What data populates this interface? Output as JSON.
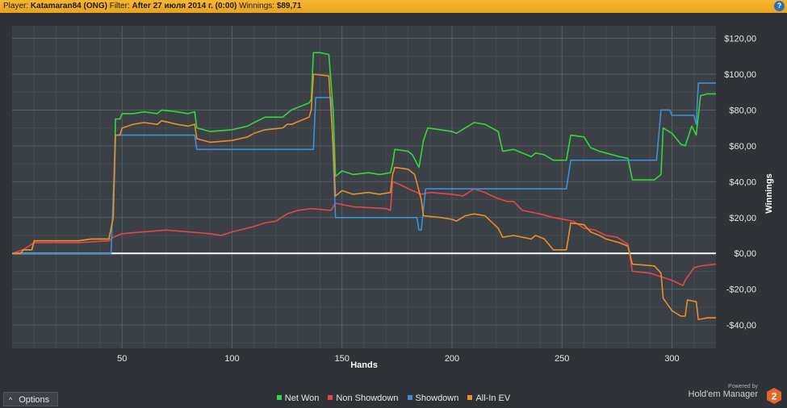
{
  "header": {
    "player_label": "Player:",
    "player_value": "Katamaran84 (ONG)",
    "filter_label": "Filter:",
    "filter_value": "After 27 июля 2014 г. (0:00)",
    "winnings_label": "Winnings:",
    "winnings_value": "$89,71",
    "help_label": "?"
  },
  "colors": {
    "net_won": "#35d63a",
    "non_showdown": "#e0474a",
    "showdown": "#3d8fd6",
    "all_in_ev": "#e98e2c",
    "zero_line": "#ffffff",
    "header_bg": "#f3ae2b"
  },
  "options": {
    "label": "Options",
    "chevron": "^"
  },
  "branding": {
    "powered_by": "Powered by",
    "name": "Hold'em Manager",
    "logo_text": "2"
  },
  "chart_data": {
    "type": "line",
    "xlabel": "Hands",
    "ylabel": "Winnings",
    "xlim": [
      0,
      320
    ],
    "ylim": [
      -53,
      127
    ],
    "x_ticks": [
      50,
      100,
      150,
      200,
      250,
      300
    ],
    "y_ticks": [
      120,
      100,
      80,
      60,
      40,
      20,
      0,
      -20,
      -40
    ],
    "y_tick_labels": [
      "$120,00",
      "$100,00",
      "$80,00",
      "$60,00",
      "$40,00",
      "$20,00",
      "$0,00",
      "-$20,00",
      "-$40,00"
    ],
    "grid": true,
    "legend_position": "bottom",
    "series": [
      {
        "name": "Net Won",
        "color": "#35d63a",
        "points": [
          [
            0,
            0
          ],
          [
            4,
            0
          ],
          [
            5,
            2
          ],
          [
            9,
            2
          ],
          [
            10,
            7
          ],
          [
            30,
            7
          ],
          [
            36,
            8
          ],
          [
            44,
            8
          ],
          [
            46,
            20
          ],
          [
            47,
            75
          ],
          [
            49,
            75
          ],
          [
            50,
            78
          ],
          [
            55,
            78
          ],
          [
            60,
            79
          ],
          [
            66,
            78
          ],
          [
            68,
            80
          ],
          [
            75,
            79
          ],
          [
            80,
            78
          ],
          [
            83,
            79
          ],
          [
            84,
            70
          ],
          [
            90,
            68
          ],
          [
            100,
            69
          ],
          [
            107,
            71
          ],
          [
            110,
            73
          ],
          [
            115,
            76
          ],
          [
            123,
            76
          ],
          [
            125,
            78
          ],
          [
            127,
            80
          ],
          [
            135,
            84
          ],
          [
            136,
            86
          ],
          [
            137,
            112
          ],
          [
            140,
            112
          ],
          [
            144,
            111
          ],
          [
            146,
            80
          ],
          [
            147,
            43
          ],
          [
            150,
            46
          ],
          [
            155,
            44
          ],
          [
            162,
            45
          ],
          [
            167,
            44
          ],
          [
            172,
            45
          ],
          [
            173,
            50
          ],
          [
            174,
            58
          ],
          [
            180,
            57
          ],
          [
            182,
            55
          ],
          [
            185,
            48
          ],
          [
            187,
            63
          ],
          [
            189,
            70
          ],
          [
            200,
            68
          ],
          [
            202,
            67
          ],
          [
            206,
            70
          ],
          [
            210,
            73
          ],
          [
            215,
            72
          ],
          [
            221,
            68
          ],
          [
            223,
            57
          ],
          [
            228,
            58
          ],
          [
            232,
            56
          ],
          [
            236,
            54
          ],
          [
            238,
            56
          ],
          [
            242,
            55
          ],
          [
            246,
            52
          ],
          [
            252,
            52
          ],
          [
            254,
            66
          ],
          [
            260,
            65
          ],
          [
            263,
            59
          ],
          [
            267,
            57
          ],
          [
            270,
            56
          ],
          [
            276,
            54
          ],
          [
            280,
            53
          ],
          [
            282,
            41
          ],
          [
            292,
            41
          ],
          [
            295,
            44
          ],
          [
            296,
            70
          ],
          [
            300,
            67
          ],
          [
            304,
            61
          ],
          [
            306,
            60
          ],
          [
            309,
            71
          ],
          [
            311,
            66
          ],
          [
            313,
            88
          ],
          [
            316,
            89
          ],
          [
            320,
            89
          ]
        ]
      },
      {
        "name": "Non Showdown",
        "color": "#e0474a",
        "points": [
          [
            0,
            0
          ],
          [
            5,
            2
          ],
          [
            10,
            6
          ],
          [
            30,
            6
          ],
          [
            44,
            7
          ],
          [
            46,
            9
          ],
          [
            50,
            11
          ],
          [
            60,
            12
          ],
          [
            70,
            13
          ],
          [
            80,
            12
          ],
          [
            90,
            11
          ],
          [
            95,
            10
          ],
          [
            100,
            12
          ],
          [
            110,
            15
          ],
          [
            115,
            17
          ],
          [
            120,
            18
          ],
          [
            125,
            22
          ],
          [
            130,
            24
          ],
          [
            136,
            25
          ],
          [
            145,
            24
          ],
          [
            147,
            28
          ],
          [
            155,
            26
          ],
          [
            170,
            25
          ],
          [
            172,
            24
          ],
          [
            173,
            40
          ],
          [
            177,
            38
          ],
          [
            182,
            35
          ],
          [
            186,
            33
          ],
          [
            190,
            34
          ],
          [
            200,
            33
          ],
          [
            205,
            32
          ],
          [
            210,
            36
          ],
          [
            215,
            34
          ],
          [
            220,
            31
          ],
          [
            225,
            29
          ],
          [
            228,
            29
          ],
          [
            232,
            24
          ],
          [
            240,
            22
          ],
          [
            246,
            20
          ],
          [
            255,
            18
          ],
          [
            260,
            14
          ],
          [
            265,
            13
          ],
          [
            270,
            10
          ],
          [
            275,
            9
          ],
          [
            280,
            5
          ],
          [
            282,
            -10
          ],
          [
            290,
            -11
          ],
          [
            295,
            -13
          ],
          [
            300,
            -15
          ],
          [
            305,
            -18
          ],
          [
            306,
            -15
          ],
          [
            310,
            -8
          ],
          [
            313,
            -7
          ],
          [
            320,
            -6
          ]
        ]
      },
      {
        "name": "Showdown",
        "color": "#3d8fd6",
        "points": [
          [
            0,
            0
          ],
          [
            44,
            0
          ],
          [
            45,
            0
          ],
          [
            47,
            66
          ],
          [
            83,
            66
          ],
          [
            84,
            58
          ],
          [
            137,
            58
          ],
          [
            138,
            87
          ],
          [
            145,
            87
          ],
          [
            147,
            20
          ],
          [
            184,
            20
          ],
          [
            185,
            13
          ],
          [
            186,
            13
          ],
          [
            188,
            36
          ],
          [
            252,
            36
          ],
          [
            254,
            52
          ],
          [
            293,
            52
          ],
          [
            295,
            80
          ],
          [
            299,
            80
          ],
          [
            300,
            77
          ],
          [
            310,
            77
          ],
          [
            311,
            72
          ],
          [
            312,
            95
          ],
          [
            320,
            95
          ]
        ]
      },
      {
        "name": "All-In EV",
        "color": "#e98e2c",
        "points": [
          [
            0,
            0
          ],
          [
            4,
            0
          ],
          [
            5,
            2
          ],
          [
            9,
            2
          ],
          [
            10,
            7
          ],
          [
            30,
            7
          ],
          [
            36,
            8
          ],
          [
            44,
            8
          ],
          [
            46,
            20
          ],
          [
            47,
            66
          ],
          [
            49,
            66
          ],
          [
            50,
            70
          ],
          [
            55,
            72
          ],
          [
            60,
            73
          ],
          [
            66,
            72
          ],
          [
            68,
            74
          ],
          [
            75,
            72
          ],
          [
            80,
            71
          ],
          [
            83,
            72
          ],
          [
            84,
            64
          ],
          [
            90,
            62
          ],
          [
            100,
            63
          ],
          [
            107,
            65
          ],
          [
            110,
            67
          ],
          [
            115,
            69
          ],
          [
            123,
            70
          ],
          [
            125,
            72
          ],
          [
            127,
            72
          ],
          [
            135,
            76
          ],
          [
            136,
            80
          ],
          [
            137,
            100
          ],
          [
            144,
            99
          ],
          [
            146,
            60
          ],
          [
            147,
            32
          ],
          [
            150,
            35
          ],
          [
            155,
            33
          ],
          [
            162,
            34
          ],
          [
            167,
            33
          ],
          [
            172,
            34
          ],
          [
            173,
            44
          ],
          [
            174,
            48
          ],
          [
            180,
            47
          ],
          [
            183,
            44
          ],
          [
            186,
            30
          ],
          [
            187,
            21
          ],
          [
            195,
            20
          ],
          [
            200,
            19
          ],
          [
            202,
            18
          ],
          [
            206,
            21
          ],
          [
            210,
            22
          ],
          [
            215,
            21
          ],
          [
            221,
            14
          ],
          [
            223,
            9
          ],
          [
            228,
            10
          ],
          [
            232,
            9
          ],
          [
            236,
            8
          ],
          [
            238,
            10
          ],
          [
            242,
            8
          ],
          [
            246,
            2
          ],
          [
            252,
            2
          ],
          [
            254,
            17
          ],
          [
            260,
            16
          ],
          [
            263,
            12
          ],
          [
            267,
            10
          ],
          [
            270,
            8
          ],
          [
            276,
            6
          ],
          [
            280,
            4
          ],
          [
            282,
            -6
          ],
          [
            292,
            -7
          ],
          [
            295,
            -11
          ],
          [
            296,
            -25
          ],
          [
            300,
            -32
          ],
          [
            304,
            -35
          ],
          [
            306,
            -35
          ],
          [
            307,
            -26
          ],
          [
            311,
            -27
          ],
          [
            312,
            -37
          ],
          [
            316,
            -36
          ],
          [
            320,
            -36
          ]
        ]
      }
    ]
  }
}
